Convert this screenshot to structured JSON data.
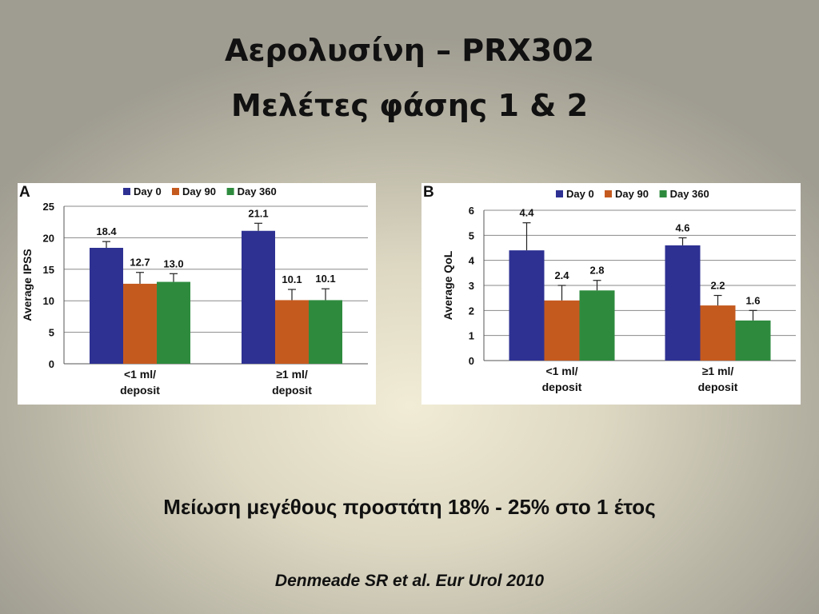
{
  "slide": {
    "title_line1": "Αερολυσίνη – PRX302",
    "title_line2": "Μελέτες φάσης 1 & 2",
    "subtitle": "Μείωση μεγέθους προστάτη 18% - 25% στο 1 έτος",
    "citation": "Denmeade SR et al. Eur Urol 2010"
  },
  "chart_data": [
    {
      "panel_label": "A",
      "type": "bar",
      "categories": [
        [
          "<1 ml/",
          "deposit"
        ],
        [
          "≥1 ml/",
          "deposit"
        ]
      ],
      "series": [
        {
          "name": "Day 0",
          "color": "#2e3192",
          "values": [
            18.4,
            21.1
          ],
          "err": [
            1.0,
            1.2
          ]
        },
        {
          "name": "Day 90",
          "color": "#c55a1f",
          "values": [
            12.7,
            10.1
          ],
          "err": [
            1.8,
            1.7
          ]
        },
        {
          "name": "Day 360",
          "color": "#2e8b3e",
          "values": [
            13.0,
            10.1
          ],
          "err": [
            1.3,
            1.8
          ]
        }
      ],
      "ylabel": "Average IPSS",
      "ylim": [
        0,
        25
      ],
      "yticks": [
        0,
        5,
        10,
        15,
        20,
        25
      ],
      "grid": true,
      "legend": "top"
    },
    {
      "panel_label": "B",
      "type": "bar",
      "categories": [
        [
          "<1 ml/",
          "deposit"
        ],
        [
          "≥1 ml/",
          "deposit"
        ]
      ],
      "series": [
        {
          "name": "Day 0",
          "color": "#2e3192",
          "values": [
            4.4,
            4.6
          ],
          "err": [
            1.1,
            0.3
          ]
        },
        {
          "name": "Day 90",
          "color": "#c55a1f",
          "values": [
            2.4,
            2.2
          ],
          "err": [
            0.6,
            0.4
          ]
        },
        {
          "name": "Day 360",
          "color": "#2e8b3e",
          "values": [
            2.8,
            1.6
          ],
          "err": [
            0.4,
            0.4
          ]
        }
      ],
      "ylabel": "Average QoL",
      "ylim": [
        0,
        6
      ],
      "yticks": [
        0,
        1,
        2,
        3,
        4,
        5,
        6
      ],
      "grid": true,
      "legend": "top"
    }
  ]
}
